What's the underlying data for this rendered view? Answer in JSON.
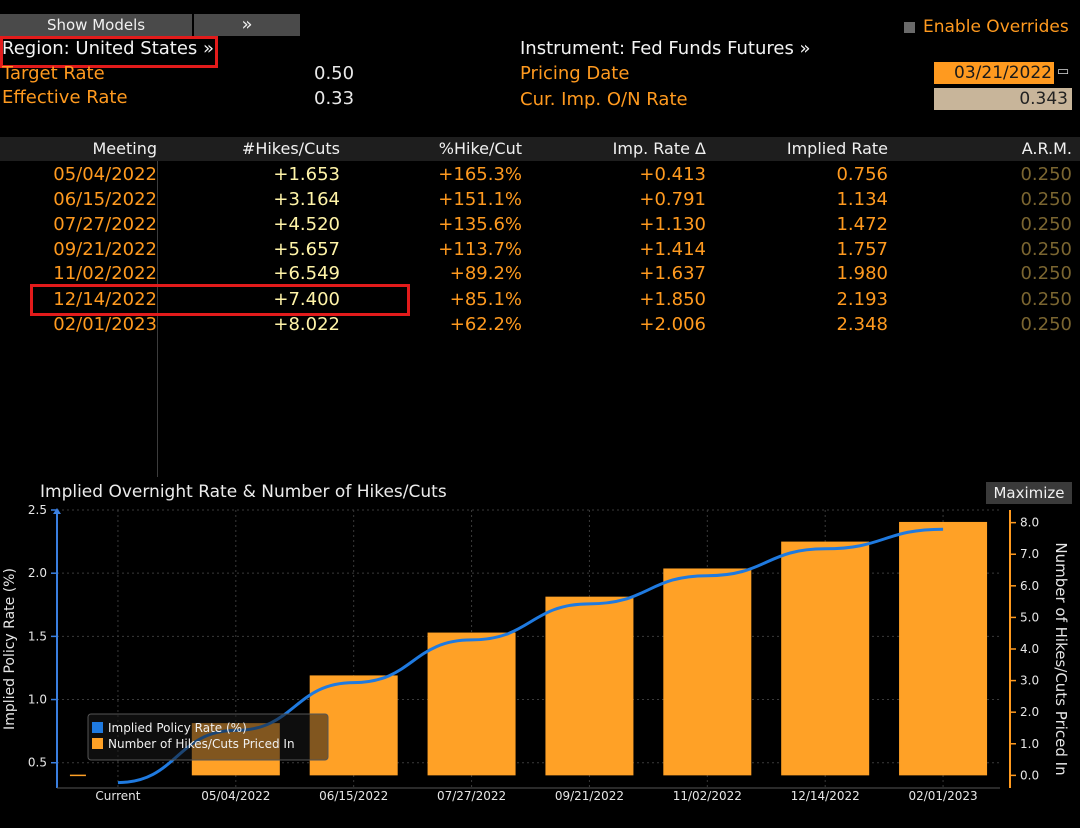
{
  "toolbar": {
    "show_models": "Show Models",
    "expand_glyph": "»",
    "enable_overrides": "Enable Overrides"
  },
  "header": {
    "region": "Region: United States »",
    "instrument": "Instrument: Fed Funds Futures »",
    "target_rate_label": "Target Rate",
    "target_rate_value": "0.50",
    "effective_rate_label": "Effective Rate",
    "effective_rate_value": "0.33",
    "pricing_date_label": "Pricing Date",
    "pricing_date_value": "03/21/2022",
    "cur_imp_label": "Cur. Imp. O/N Rate",
    "cur_imp_value": "0.343"
  },
  "table": {
    "columns": [
      "Meeting",
      "#Hikes/Cuts",
      "%Hike/Cut",
      "Imp. Rate Δ",
      "Implied Rate",
      "A.R.M."
    ],
    "rows": [
      {
        "meeting": "05/04/2022",
        "hikes": "+1.653",
        "pct": "+165.3%",
        "delta": "+0.413",
        "rate": "0.756",
        "arm": "0.250"
      },
      {
        "meeting": "06/15/2022",
        "hikes": "+3.164",
        "pct": "+151.1%",
        "delta": "+0.791",
        "rate": "1.134",
        "arm": "0.250"
      },
      {
        "meeting": "07/27/2022",
        "hikes": "+4.520",
        "pct": "+135.6%",
        "delta": "+1.130",
        "rate": "1.472",
        "arm": "0.250"
      },
      {
        "meeting": "09/21/2022",
        "hikes": "+5.657",
        "pct": "+113.7%",
        "delta": "+1.414",
        "rate": "1.757",
        "arm": "0.250"
      },
      {
        "meeting": "11/02/2022",
        "hikes": "+6.549",
        "pct": "+89.2%",
        "delta": "+1.637",
        "rate": "1.980",
        "arm": "0.250"
      },
      {
        "meeting": "12/14/2022",
        "hikes": "+7.400",
        "pct": "+85.1%",
        "delta": "+1.850",
        "rate": "2.193",
        "arm": "0.250"
      },
      {
        "meeting": "02/01/2023",
        "hikes": "+8.022",
        "pct": "+62.2%",
        "delta": "+2.006",
        "rate": "2.348",
        "arm": "0.250"
      }
    ]
  },
  "chart_title": "Implied Overnight Rate & Number of Hikes/Cuts",
  "maximize_label": "Maximize",
  "colors": {
    "orange": "#ff9a1f",
    "bar": "#ffa126",
    "line": "#1f7ae0",
    "highlight": "#e21b1b"
  },
  "chart_data": {
    "type": "bar",
    "categories": [
      "Current",
      "05/04/2022",
      "06/15/2022",
      "07/27/2022",
      "09/21/2022",
      "11/02/2022",
      "12/14/2022",
      "02/01/2023"
    ],
    "series": [
      {
        "name": "Implied Policy Rate (%)",
        "type": "line",
        "axis": "left",
        "values": [
          0.343,
          0.756,
          1.134,
          1.472,
          1.757,
          1.98,
          2.193,
          2.348
        ]
      },
      {
        "name": "Number of Hikes/Cuts Priced In",
        "type": "bar",
        "axis": "right",
        "values": [
          0,
          1.653,
          3.164,
          4.52,
          5.657,
          6.549,
          7.4,
          8.022
        ]
      }
    ],
    "ylabel_left": "Implied Policy Rate (%)",
    "ylabel_right": "Number of Hikes/Cuts Priced In",
    "ylim_left": [
      0.3,
      2.5
    ],
    "ylim_right": [
      -0.4,
      8.4
    ],
    "yticks_left": [
      "0.5",
      "1.0",
      "1.5",
      "2.0",
      "2.5"
    ],
    "yticks_right": [
      "0.0",
      "1.0",
      "2.0",
      "3.0",
      "4.0",
      "5.0",
      "6.0",
      "7.0",
      "8.0"
    ],
    "legend_position": "bottom-left",
    "grid": true
  }
}
